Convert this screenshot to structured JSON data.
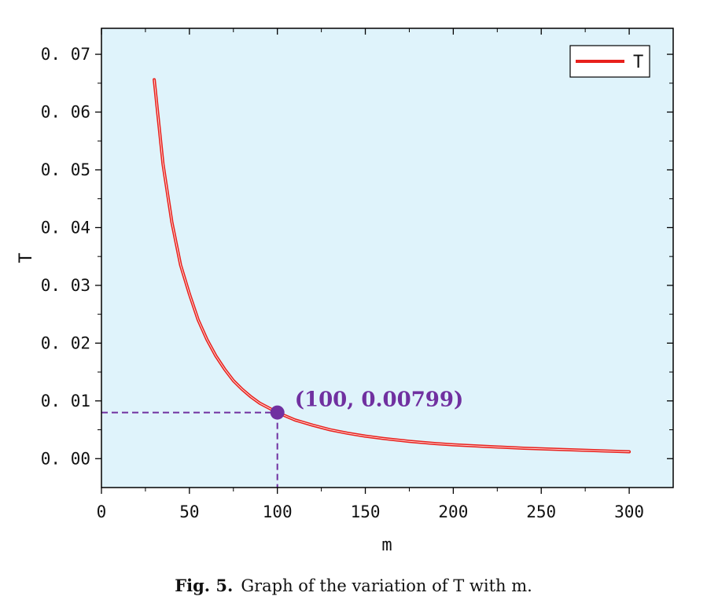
{
  "chart_data": {
    "type": "line",
    "xlabel": "m",
    "ylabel": "T",
    "xlim": [
      0,
      325
    ],
    "ylim": [
      -0.005,
      0.0745
    ],
    "x_ticks": [
      0,
      50,
      100,
      150,
      200,
      250,
      300
    ],
    "x_tick_labels": [
      "0",
      "50",
      "100",
      "150",
      "200",
      "250",
      "300"
    ],
    "y_ticks": [
      0.0,
      0.01,
      0.02,
      0.03,
      0.04,
      0.05,
      0.06,
      0.07
    ],
    "y_tick_labels": [
      "0. 00",
      "0. 01",
      "0. 02",
      "0. 03",
      "0. 04",
      "0. 05",
      "0. 06",
      "0. 07"
    ],
    "legend_position": "top-right",
    "grid": false,
    "background_color": "#dff3fb",
    "series": [
      {
        "name": "T",
        "color": "#e8201c",
        "x": [
          30,
          35,
          40,
          45,
          50,
          55,
          60,
          65,
          70,
          75,
          80,
          85,
          90,
          95,
          100,
          110,
          120,
          130,
          140,
          150,
          160,
          175,
          190,
          200,
          220,
          240,
          250,
          260,
          280,
          300
        ],
        "y": [
          0.0656,
          0.051,
          0.041,
          0.0335,
          0.0285,
          0.024,
          0.0206,
          0.0178,
          0.0155,
          0.0135,
          0.012,
          0.0107,
          0.0096,
          0.0088,
          0.00799,
          0.0067,
          0.0058,
          0.005,
          0.0044,
          0.0039,
          0.0035,
          0.003,
          0.0026,
          0.0024,
          0.0021,
          0.0018,
          0.0017,
          0.0016,
          0.0014,
          0.0012
        ]
      }
    ],
    "annotation": {
      "x": 100,
      "y": 0.00799,
      "label": "(100, 0.00799)",
      "color": "#7030a0"
    }
  },
  "caption": {
    "fig_label": "Fig. 5.",
    "text": "Graph of the variation of T with m."
  }
}
